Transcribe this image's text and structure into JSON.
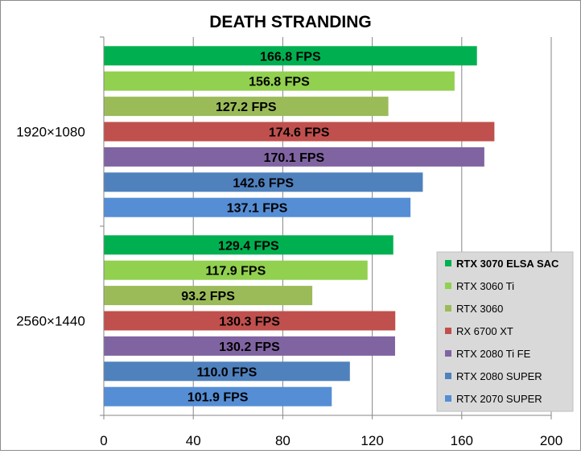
{
  "chart_data": {
    "type": "bar",
    "orientation": "horizontal",
    "title": "DEATH STRANDING",
    "xlabel": "",
    "ylabel": "",
    "xlim": [
      0,
      200
    ],
    "x_ticks": [
      "0",
      "40",
      "80",
      "120",
      "160",
      "200"
    ],
    "grid": "vertical",
    "legend_position": "right",
    "value_suffix": " FPS",
    "categories": [
      "1920×1080",
      "2560×1440"
    ],
    "series": [
      {
        "name": "RTX 3070 ELSA SAC",
        "color": "#00b050",
        "values": [
          166.8,
          129.4
        ]
      },
      {
        "name": "RTX 3060 Ti",
        "color": "#92d050",
        "values": [
          156.8,
          117.9
        ]
      },
      {
        "name": "RTX 3060",
        "color": "#9bbb59",
        "values": [
          127.2,
          93.2
        ]
      },
      {
        "name": "RX 6700 XT",
        "color": "#c0504d",
        "values": [
          174.6,
          130.3
        ]
      },
      {
        "name": "RTX 2080 Ti FE",
        "color": "#8064a2",
        "values": [
          170.1,
          130.2
        ]
      },
      {
        "name": "RTX 2080 SUPER",
        "color": "#4f81bd",
        "values": [
          142.6,
          110.0
        ]
      },
      {
        "name": "RTX 2070 SUPER",
        "color": "#558ed5",
        "values": [
          137.1,
          101.9
        ]
      }
    ]
  }
}
